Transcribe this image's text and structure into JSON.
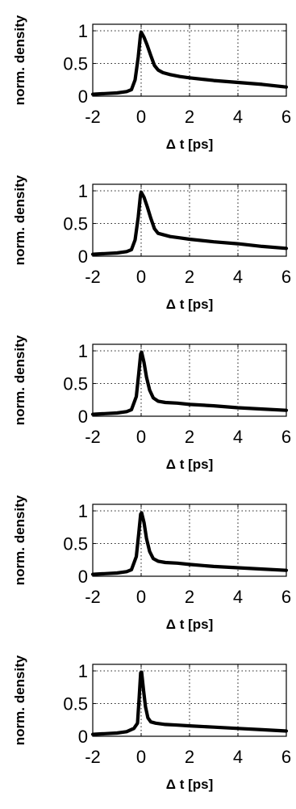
{
  "chart_data": [
    {
      "type": "line",
      "title": "",
      "xlabel": "Δ t [ps]",
      "ylabel": "norm. density",
      "xlim": [
        -2,
        6
      ],
      "ylim": [
        0,
        1.1
      ],
      "xticks": [
        -2,
        0,
        2,
        4,
        6
      ],
      "xtick_labels": [
        "-2",
        "0",
        "2",
        "4",
        "6"
      ],
      "yticks": [
        0,
        0.5,
        1
      ],
      "ytick_labels": [
        "0",
        "0.5",
        "1"
      ],
      "grid": true,
      "series": [
        {
          "values": [
            {
              "x": -2.0,
              "y": 0.03
            },
            {
              "x": -1.5,
              "y": 0.04
            },
            {
              "x": -1.0,
              "y": 0.05
            },
            {
              "x": -0.6,
              "y": 0.07
            },
            {
              "x": -0.4,
              "y": 0.1
            },
            {
              "x": -0.25,
              "y": 0.25
            },
            {
              "x": -0.12,
              "y": 0.6
            },
            {
              "x": -0.03,
              "y": 0.93
            },
            {
              "x": 0.0,
              "y": 0.98
            },
            {
              "x": 0.12,
              "y": 0.9
            },
            {
              "x": 0.25,
              "y": 0.78
            },
            {
              "x": 0.4,
              "y": 0.62
            },
            {
              "x": 0.55,
              "y": 0.47
            },
            {
              "x": 0.7,
              "y": 0.4
            },
            {
              "x": 0.9,
              "y": 0.36
            },
            {
              "x": 1.2,
              "y": 0.33
            },
            {
              "x": 1.6,
              "y": 0.3
            },
            {
              "x": 2.0,
              "y": 0.28
            },
            {
              "x": 3.0,
              "y": 0.24
            },
            {
              "x": 4.0,
              "y": 0.21
            },
            {
              "x": 5.0,
              "y": 0.18
            },
            {
              "x": 6.0,
              "y": 0.14
            }
          ]
        }
      ]
    },
    {
      "type": "line",
      "title": "",
      "xlabel": "Δ t [ps]",
      "ylabel": "norm. density",
      "xlim": [
        -2,
        6
      ],
      "ylim": [
        0,
        1.1
      ],
      "xticks": [
        -2,
        0,
        2,
        4,
        6
      ],
      "xtick_labels": [
        "-2",
        "0",
        "2",
        "4",
        "6"
      ],
      "yticks": [
        0,
        0.5,
        1
      ],
      "ytick_labels": [
        "0",
        "0.5",
        "1"
      ],
      "grid": true,
      "series": [
        {
          "values": [
            {
              "x": -2.0,
              "y": 0.03
            },
            {
              "x": -1.5,
              "y": 0.04
            },
            {
              "x": -1.0,
              "y": 0.05
            },
            {
              "x": -0.6,
              "y": 0.07
            },
            {
              "x": -0.4,
              "y": 0.1
            },
            {
              "x": -0.25,
              "y": 0.25
            },
            {
              "x": -0.12,
              "y": 0.6
            },
            {
              "x": -0.03,
              "y": 0.93
            },
            {
              "x": 0.0,
              "y": 0.98
            },
            {
              "x": 0.12,
              "y": 0.9
            },
            {
              "x": 0.25,
              "y": 0.76
            },
            {
              "x": 0.4,
              "y": 0.58
            },
            {
              "x": 0.55,
              "y": 0.42
            },
            {
              "x": 0.7,
              "y": 0.35
            },
            {
              "x": 0.9,
              "y": 0.33
            },
            {
              "x": 1.2,
              "y": 0.3
            },
            {
              "x": 1.6,
              "y": 0.28
            },
            {
              "x": 2.0,
              "y": 0.26
            },
            {
              "x": 3.0,
              "y": 0.22
            },
            {
              "x": 4.0,
              "y": 0.19
            },
            {
              "x": 5.0,
              "y": 0.15
            },
            {
              "x": 6.0,
              "y": 0.12
            }
          ]
        }
      ]
    },
    {
      "type": "line",
      "title": "",
      "xlabel": "Δ t [ps]",
      "ylabel": "norm. density",
      "xlim": [
        -2,
        6
      ],
      "ylim": [
        0,
        1.1
      ],
      "xticks": [
        -2,
        0,
        2,
        4,
        6
      ],
      "xtick_labels": [
        "-2",
        "0",
        "2",
        "4",
        "6"
      ],
      "yticks": [
        0,
        0.5,
        1
      ],
      "ytick_labels": [
        "0",
        "0.5",
        "1"
      ],
      "grid": true,
      "series": [
        {
          "values": [
            {
              "x": -2.0,
              "y": 0.03
            },
            {
              "x": -1.5,
              "y": 0.04
            },
            {
              "x": -1.0,
              "y": 0.05
            },
            {
              "x": -0.6,
              "y": 0.07
            },
            {
              "x": -0.4,
              "y": 0.1
            },
            {
              "x": -0.2,
              "y": 0.3
            },
            {
              "x": -0.1,
              "y": 0.65
            },
            {
              "x": -0.02,
              "y": 0.95
            },
            {
              "x": 0.02,
              "y": 0.98
            },
            {
              "x": 0.12,
              "y": 0.82
            },
            {
              "x": 0.22,
              "y": 0.6
            },
            {
              "x": 0.35,
              "y": 0.4
            },
            {
              "x": 0.5,
              "y": 0.28
            },
            {
              "x": 0.7,
              "y": 0.23
            },
            {
              "x": 1.0,
              "y": 0.21
            },
            {
              "x": 1.5,
              "y": 0.2
            },
            {
              "x": 2.0,
              "y": 0.18
            },
            {
              "x": 3.0,
              "y": 0.16
            },
            {
              "x": 4.0,
              "y": 0.13
            },
            {
              "x": 5.0,
              "y": 0.11
            },
            {
              "x": 6.0,
              "y": 0.09
            }
          ]
        }
      ]
    },
    {
      "type": "line",
      "title": "",
      "xlabel": "Δ t [ps]",
      "ylabel": "norm. density",
      "xlim": [
        -2,
        6
      ],
      "ylim": [
        0,
        1.1
      ],
      "xticks": [
        -2,
        0,
        2,
        4,
        6
      ],
      "xtick_labels": [
        "-2",
        "0",
        "2",
        "4",
        "6"
      ],
      "yticks": [
        0,
        0.5,
        1
      ],
      "ytick_labels": [
        "0",
        "0.5",
        "1"
      ],
      "grid": true,
      "series": [
        {
          "values": [
            {
              "x": -2.0,
              "y": 0.03
            },
            {
              "x": -1.5,
              "y": 0.04
            },
            {
              "x": -1.0,
              "y": 0.05
            },
            {
              "x": -0.6,
              "y": 0.07
            },
            {
              "x": -0.4,
              "y": 0.1
            },
            {
              "x": -0.2,
              "y": 0.3
            },
            {
              "x": -0.1,
              "y": 0.65
            },
            {
              "x": -0.02,
              "y": 0.95
            },
            {
              "x": 0.02,
              "y": 0.97
            },
            {
              "x": 0.12,
              "y": 0.82
            },
            {
              "x": 0.22,
              "y": 0.58
            },
            {
              "x": 0.35,
              "y": 0.38
            },
            {
              "x": 0.5,
              "y": 0.27
            },
            {
              "x": 0.7,
              "y": 0.23
            },
            {
              "x": 1.0,
              "y": 0.21
            },
            {
              "x": 1.5,
              "y": 0.2
            },
            {
              "x": 2.0,
              "y": 0.18
            },
            {
              "x": 3.0,
              "y": 0.15
            },
            {
              "x": 4.0,
              "y": 0.13
            },
            {
              "x": 5.0,
              "y": 0.11
            },
            {
              "x": 6.0,
              "y": 0.09
            }
          ]
        }
      ]
    },
    {
      "type": "line",
      "title": "",
      "xlabel": "Δ t [ps]",
      "ylabel": "norm. density",
      "xlim": [
        -2,
        6
      ],
      "ylim": [
        0,
        1.1
      ],
      "xticks": [
        -2,
        0,
        2,
        4,
        6
      ],
      "xtick_labels": [
        "-2",
        "0",
        "2",
        "4",
        "6"
      ],
      "yticks": [
        0,
        0.5,
        1
      ],
      "ytick_labels": [
        "0",
        "0.5",
        "1"
      ],
      "grid": true,
      "series": [
        {
          "values": [
            {
              "x": -2.0,
              "y": 0.03
            },
            {
              "x": -1.5,
              "y": 0.04
            },
            {
              "x": -1.0,
              "y": 0.05
            },
            {
              "x": -0.6,
              "y": 0.07
            },
            {
              "x": -0.3,
              "y": 0.12
            },
            {
              "x": -0.15,
              "y": 0.2
            },
            {
              "x": -0.08,
              "y": 0.6
            },
            {
              "x": -0.02,
              "y": 0.97
            },
            {
              "x": 0.02,
              "y": 0.98
            },
            {
              "x": 0.1,
              "y": 0.7
            },
            {
              "x": 0.18,
              "y": 0.45
            },
            {
              "x": 0.28,
              "y": 0.28
            },
            {
              "x": 0.4,
              "y": 0.22
            },
            {
              "x": 0.6,
              "y": 0.2
            },
            {
              "x": 1.0,
              "y": 0.18
            },
            {
              "x": 1.5,
              "y": 0.17
            },
            {
              "x": 2.0,
              "y": 0.16
            },
            {
              "x": 3.0,
              "y": 0.14
            },
            {
              "x": 4.0,
              "y": 0.12
            },
            {
              "x": 5.0,
              "y": 0.1
            },
            {
              "x": 6.0,
              "y": 0.08
            }
          ]
        }
      ]
    }
  ]
}
